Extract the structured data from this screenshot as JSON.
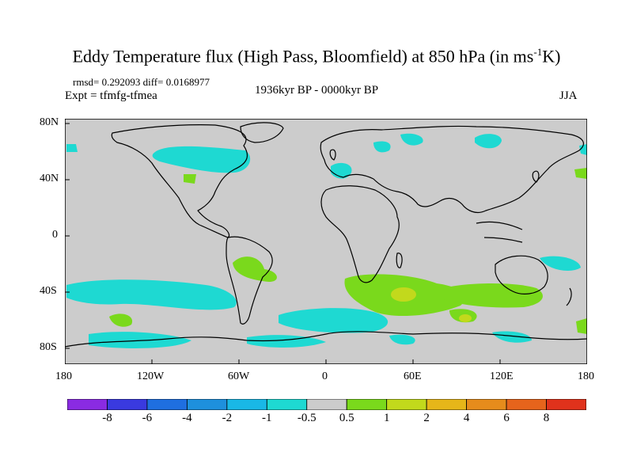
{
  "title": {
    "main": "Eddy Temperature flux (High Pass, Bloomfield) at 850 hPa (in ms",
    "sup": "-1",
    "tail": "K)"
  },
  "stats": {
    "rmsd": "rmsd= 0.292093 diff= 0.0168977"
  },
  "experiment": "Expt = tfmfg-tfmea",
  "period": "1936kyr BP - 0000kyr BP",
  "season": "JJA",
  "axes": {
    "lat_labels": [
      "80N",
      "40N",
      "0",
      "40S",
      "80S"
    ],
    "lon_labels": [
      "180",
      "120W",
      "60W",
      "0",
      "60E",
      "120E",
      "180"
    ]
  },
  "colorbar": {
    "labels": [
      "-8",
      "-6",
      "-4",
      "-2",
      "-1",
      "-0.5",
      "0.5",
      "1",
      "2",
      "4",
      "6",
      "8"
    ],
    "colors": [
      "#8a2be2",
      "#3a3adf",
      "#1f6fe0",
      "#1e90dd",
      "#19b8e6",
      "#1ed9d2",
      "#cccccc",
      "#7ad91c",
      "#c2d91c",
      "#e6b619",
      "#e68c1c",
      "#e6641c",
      "#e0321c"
    ]
  },
  "map": {
    "background": "#cccccc"
  }
}
